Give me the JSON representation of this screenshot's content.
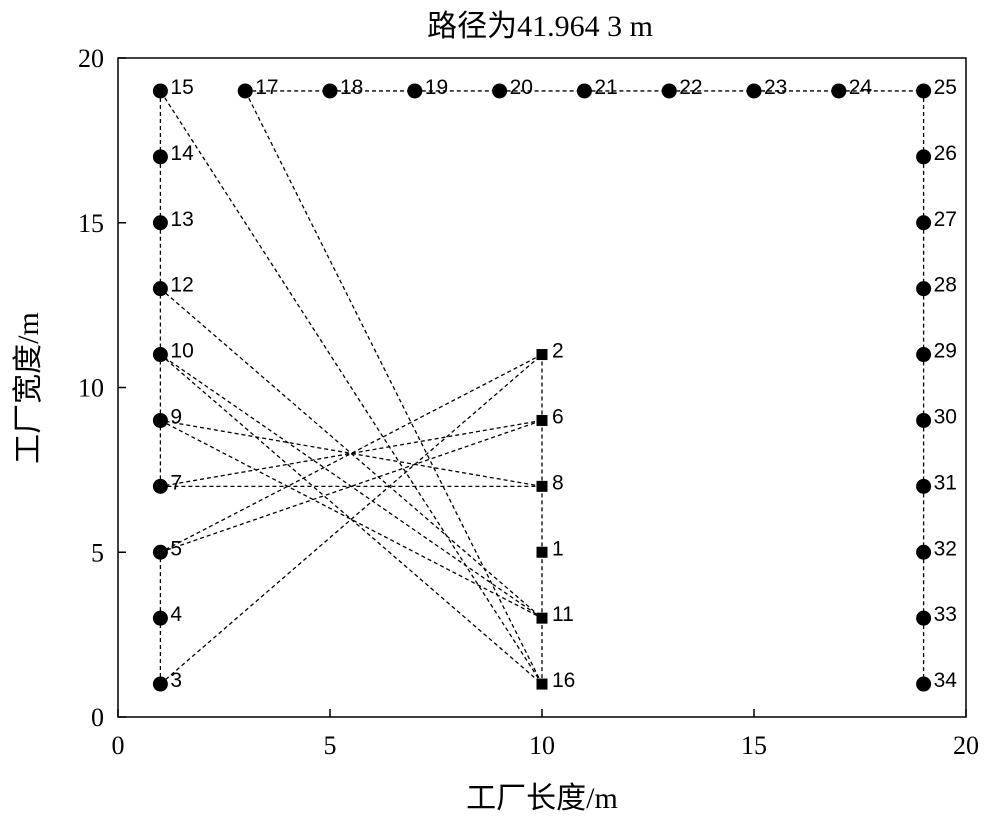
{
  "chart_data": {
    "type": "scatter",
    "title": "路径为41.964 3 m",
    "xlabel": "工厂长度/m",
    "ylabel": "工厂宽度/m",
    "xlim": [
      0,
      20
    ],
    "ylim": [
      0,
      20
    ],
    "xticks": [
      "0",
      "5",
      "10",
      "15",
      "20"
    ],
    "yticks": [
      "0",
      "5",
      "10",
      "15",
      "20"
    ],
    "grid": false,
    "legend": "none",
    "marker_color": "#000000",
    "points": [
      {
        "label": "1",
        "x": 10,
        "y": 5,
        "marker": "square"
      },
      {
        "label": "2",
        "x": 10,
        "y": 11,
        "marker": "square"
      },
      {
        "label": "3",
        "x": 1,
        "y": 1,
        "marker": "circle"
      },
      {
        "label": "4",
        "x": 1,
        "y": 3,
        "marker": "circle"
      },
      {
        "label": "5",
        "x": 1,
        "y": 5,
        "marker": "circle"
      },
      {
        "label": "6",
        "x": 10,
        "y": 9,
        "marker": "square"
      },
      {
        "label": "7",
        "x": 1,
        "y": 7,
        "marker": "circle"
      },
      {
        "label": "8",
        "x": 10,
        "y": 7,
        "marker": "square"
      },
      {
        "label": "9",
        "x": 1,
        "y": 9,
        "marker": "circle"
      },
      {
        "label": "10",
        "x": 1,
        "y": 11,
        "marker": "circle"
      },
      {
        "label": "11",
        "x": 10,
        "y": 3,
        "marker": "square"
      },
      {
        "label": "12",
        "x": 1,
        "y": 13,
        "marker": "circle"
      },
      {
        "label": "13",
        "x": 1,
        "y": 15,
        "marker": "circle"
      },
      {
        "label": "14",
        "x": 1,
        "y": 17,
        "marker": "circle"
      },
      {
        "label": "15",
        "x": 1,
        "y": 19,
        "marker": "circle"
      },
      {
        "label": "16",
        "x": 10,
        "y": 1,
        "marker": "square"
      },
      {
        "label": "17",
        "x": 3,
        "y": 19,
        "marker": "circle"
      },
      {
        "label": "18",
        "x": 5,
        "y": 19,
        "marker": "circle"
      },
      {
        "label": "19",
        "x": 7,
        "y": 19,
        "marker": "circle"
      },
      {
        "label": "20",
        "x": 9,
        "y": 19,
        "marker": "circle"
      },
      {
        "label": "21",
        "x": 11,
        "y": 19,
        "marker": "circle"
      },
      {
        "label": "22",
        "x": 13,
        "y": 19,
        "marker": "circle"
      },
      {
        "label": "23",
        "x": 15,
        "y": 19,
        "marker": "circle"
      },
      {
        "label": "24",
        "x": 17,
        "y": 19,
        "marker": "circle"
      },
      {
        "label": "25",
        "x": 19,
        "y": 19,
        "marker": "circle"
      },
      {
        "label": "26",
        "x": 19,
        "y": 17,
        "marker": "circle"
      },
      {
        "label": "27",
        "x": 19,
        "y": 15,
        "marker": "circle"
      },
      {
        "label": "28",
        "x": 19,
        "y": 13,
        "marker": "circle"
      },
      {
        "label": "29",
        "x": 19,
        "y": 11,
        "marker": "circle"
      },
      {
        "label": "30",
        "x": 19,
        "y": 9,
        "marker": "circle"
      },
      {
        "label": "31",
        "x": 19,
        "y": 7,
        "marker": "circle"
      },
      {
        "label": "32",
        "x": 19,
        "y": 5,
        "marker": "circle"
      },
      {
        "label": "33",
        "x": 19,
        "y": 3,
        "marker": "circle"
      },
      {
        "label": "34",
        "x": 19,
        "y": 1,
        "marker": "circle"
      }
    ],
    "route": [
      "3",
      "2",
      "5",
      "6",
      "7",
      "8",
      "9",
      "11",
      "10",
      "16",
      "15",
      "14",
      "13",
      "12",
      "11",
      "16",
      "17",
      "18",
      "19",
      "20",
      "21",
      "22",
      "23",
      "24",
      "25",
      "26",
      "27",
      "28",
      "29",
      "30",
      "31",
      "32",
      "33",
      "34"
    ],
    "extra_segments": [
      [
        "3",
        "4"
      ],
      [
        "4",
        "5"
      ],
      [
        "7",
        "9"
      ],
      [
        "9",
        "10"
      ],
      [
        "10",
        "12"
      ],
      [
        "2",
        "6"
      ],
      [
        "6",
        "8"
      ],
      [
        "8",
        "1"
      ],
      [
        "1",
        "11"
      ]
    ]
  }
}
